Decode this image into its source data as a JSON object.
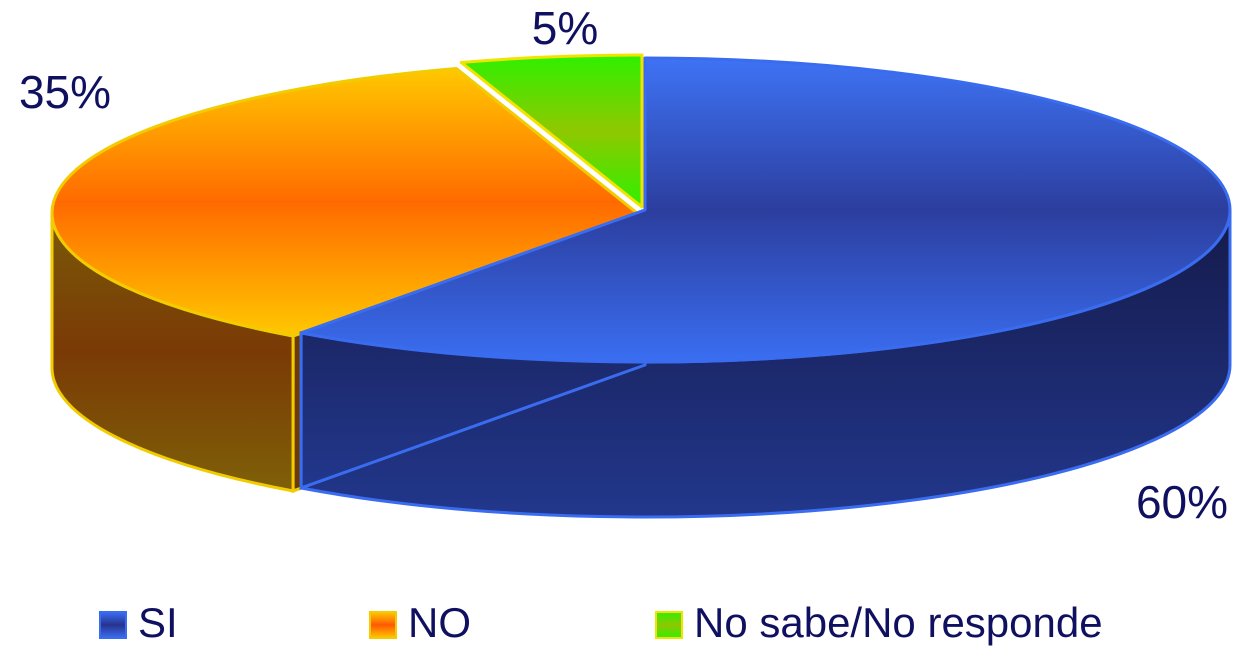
{
  "chart_data": {
    "type": "pie",
    "variant": "3d-exploded",
    "title": "",
    "categories": [
      "SI",
      "NO",
      "No sabe/No responde"
    ],
    "values": [
      60,
      35,
      5
    ],
    "data_labels": [
      "60%",
      "35%",
      "5%"
    ],
    "colors": [
      "#2f5be6",
      "#ff8a00",
      "#33dd00"
    ],
    "outline_colors": [
      "#3a6cf0",
      "#f2cc00",
      "#f2e400"
    ],
    "legend": "bottom"
  }
}
